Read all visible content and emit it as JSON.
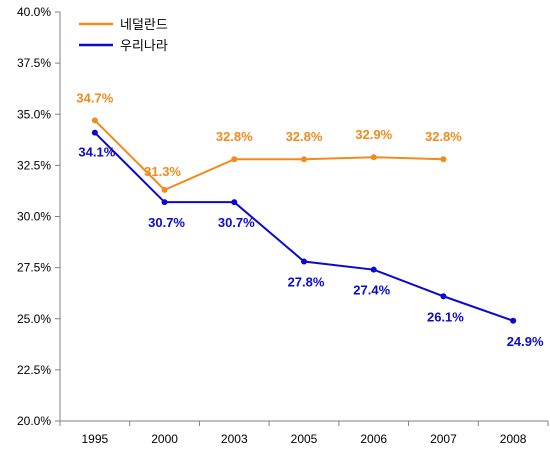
{
  "chart_data": {
    "type": "line",
    "title": "",
    "xlabel": "",
    "ylabel": "",
    "categories": [
      "1995",
      "2000",
      "2003",
      "2005",
      "2006",
      "2007",
      "2008"
    ],
    "ylim": [
      20.0,
      40.0
    ],
    "y_ticks": [
      "20.0%",
      "22.5%",
      "25.0%",
      "27.5%",
      "30.0%",
      "32.5%",
      "35.0%",
      "37.5%",
      "40.0%"
    ],
    "grid": false,
    "legend": "top-left",
    "series": [
      {
        "name": "네덜란드",
        "color": "#F28A1E",
        "values": [
          34.7,
          31.3,
          32.8,
          32.8,
          32.9,
          32.8,
          null
        ],
        "labels": [
          "34.7%",
          "31.3%",
          "32.8%",
          "32.8%",
          "32.9%",
          "32.8%",
          null
        ]
      },
      {
        "name": "우리나라",
        "color": "#0A0ACF",
        "values": [
          34.1,
          30.7,
          30.7,
          27.8,
          27.4,
          26.1,
          24.9
        ],
        "labels": [
          "34.1%",
          "30.7%",
          "30.7%",
          "27.8%",
          "27.4%",
          "26.1%",
          "24.9%"
        ]
      }
    ]
  }
}
